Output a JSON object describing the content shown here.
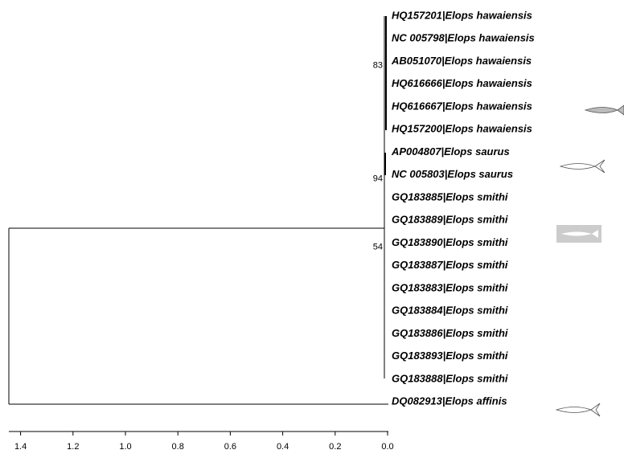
{
  "tree": {
    "leaves": [
      "HQ157201|Elops hawaiensis",
      "NC 005798|Elops hawaiensis",
      "AB051070|Elops hawaiensis",
      "HQ616666|Elops hawaiensis",
      "HQ616667|Elops hawaiensis",
      "HQ157200|Elops hawaiensis",
      "AP004807|Elops saurus",
      "NC 005803|Elops saurus",
      "GQ183885|Elops smithi",
      "GQ183889|Elops smithi",
      "GQ183890|Elops smithi",
      "GQ183887|Elops smithi",
      "GQ183883|Elops smithi",
      "GQ183884|Elops smithi",
      "GQ183886|Elops smithi",
      "GQ183893|Elops smithi",
      "GQ183888|Elops smithi",
      "DQ082913|Elops affinis"
    ],
    "bootstrap": [
      {
        "label": "83",
        "leaf": 2
      },
      {
        "label": "94",
        "leaf": 7
      },
      {
        "label": "54",
        "leaf": 10
      }
    ],
    "axis_ticks": [
      1.4,
      1.2,
      {
        "value": 1,
        "label": "1.0"
      },
      0.8,
      0.6,
      0.4,
      0.2,
      {
        "value": 0,
        "label": "0.0"
      }
    ]
  }
}
